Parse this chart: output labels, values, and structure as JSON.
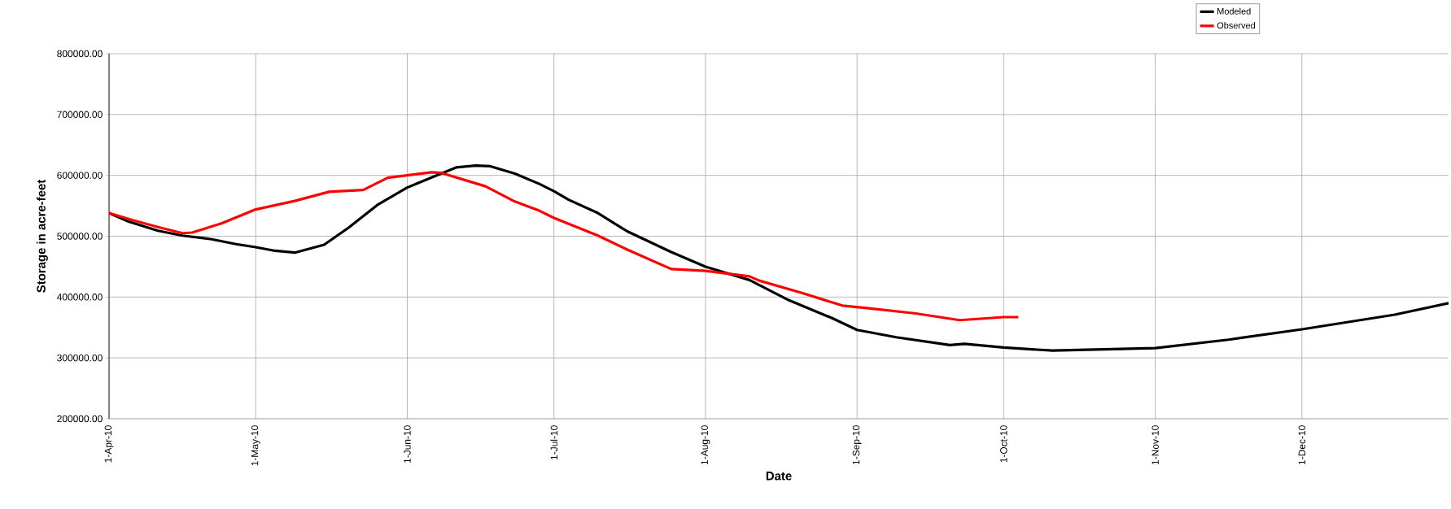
{
  "chart_data": {
    "type": "line",
    "xlabel": "Date",
    "ylabel": "Storage in acre-feet",
    "xlim": [
      "2010-04-01",
      "2010-12-31"
    ],
    "xticks": [
      {
        "value": "2010-04-01",
        "label": "1-Apr-10"
      },
      {
        "value": "2010-05-01",
        "label": "1-May-10"
      },
      {
        "value": "2010-06-01",
        "label": "1-Jun-10"
      },
      {
        "value": "2010-07-01",
        "label": "1-Jul-10"
      },
      {
        "value": "2010-08-01",
        "label": "1-Aug-10"
      },
      {
        "value": "2010-09-01",
        "label": "1-Sep-10"
      },
      {
        "value": "2010-10-01",
        "label": "1-Oct-10"
      },
      {
        "value": "2010-11-01",
        "label": "1-Nov-10"
      },
      {
        "value": "2010-12-01",
        "label": "1-Dec-10"
      }
    ],
    "ylim": [
      200000,
      800000
    ],
    "yticks": [
      {
        "value": 200000,
        "label": "200000.00"
      },
      {
        "value": 300000,
        "label": "300000.00"
      },
      {
        "value": 400000,
        "label": "400000.00"
      },
      {
        "value": 500000,
        "label": "500000.00"
      },
      {
        "value": 600000,
        "label": "600000.00"
      },
      {
        "value": 700000,
        "label": "700000.00"
      },
      {
        "value": 800000,
        "label": "800000.00"
      }
    ],
    "grid": true,
    "legend": "top right",
    "marker": "none",
    "line_style": "solid",
    "series": [
      {
        "name": "Modeled",
        "color": "#000000",
        "x": [
          "2010-04-01",
          "2010-04-05",
          "2010-04-11",
          "2010-04-16",
          "2010-04-22",
          "2010-04-27",
          "2010-05-01",
          "2010-05-05",
          "2010-05-09",
          "2010-05-15",
          "2010-05-20",
          "2010-05-26",
          "2010-06-01",
          "2010-06-07",
          "2010-06-11",
          "2010-06-15",
          "2010-06-18",
          "2010-06-23",
          "2010-06-28",
          "2010-07-01",
          "2010-07-04",
          "2010-07-10",
          "2010-07-16",
          "2010-07-25",
          "2010-08-01",
          "2010-08-10",
          "2010-08-18",
          "2010-08-27",
          "2010-09-01",
          "2010-09-09",
          "2010-09-20",
          "2010-09-23",
          "2010-10-01",
          "2010-10-11",
          "2010-11-01",
          "2010-11-16",
          "2010-12-01",
          "2010-12-20",
          "2010-12-31"
        ],
        "values": [
          538000,
          524000,
          509000,
          501000,
          495000,
          487000,
          482000,
          476000,
          473000,
          486000,
          514000,
          552000,
          580000,
          600000,
          613000,
          616000,
          615000,
          603000,
          586000,
          574000,
          560000,
          538000,
          508000,
          474000,
          450000,
          428000,
          395000,
          365000,
          346000,
          334000,
          321000,
          323000,
          317000,
          312000,
          316000,
          330000,
          347000,
          371000,
          390000
        ]
      },
      {
        "name": "Observed",
        "color": "#ff0000",
        "x": [
          "2010-04-01",
          "2010-04-06",
          "2010-04-11",
          "2010-04-16",
          "2010-04-18",
          "2010-04-24",
          "2010-05-01",
          "2010-05-09",
          "2010-05-16",
          "2010-05-23",
          "2010-05-28",
          "2010-06-06",
          "2010-06-08",
          "2010-06-17",
          "2010-06-23",
          "2010-06-28",
          "2010-07-01",
          "2010-07-10",
          "2010-07-16",
          "2010-07-25",
          "2010-08-01",
          "2010-08-10",
          "2010-08-12",
          "2010-08-21",
          "2010-08-29",
          "2010-09-03",
          "2010-09-13",
          "2010-09-22",
          "2010-10-01",
          "2010-10-04"
        ],
        "values": [
          538000,
          526000,
          515000,
          505000,
          506000,
          521000,
          544000,
          558000,
          573000,
          576000,
          596000,
          605000,
          604000,
          582000,
          557000,
          542000,
          530000,
          501000,
          478000,
          446000,
          443000,
          434000,
          427000,
          406000,
          386000,
          382000,
          373000,
          362000,
          367000,
          367000
        ]
      }
    ]
  }
}
